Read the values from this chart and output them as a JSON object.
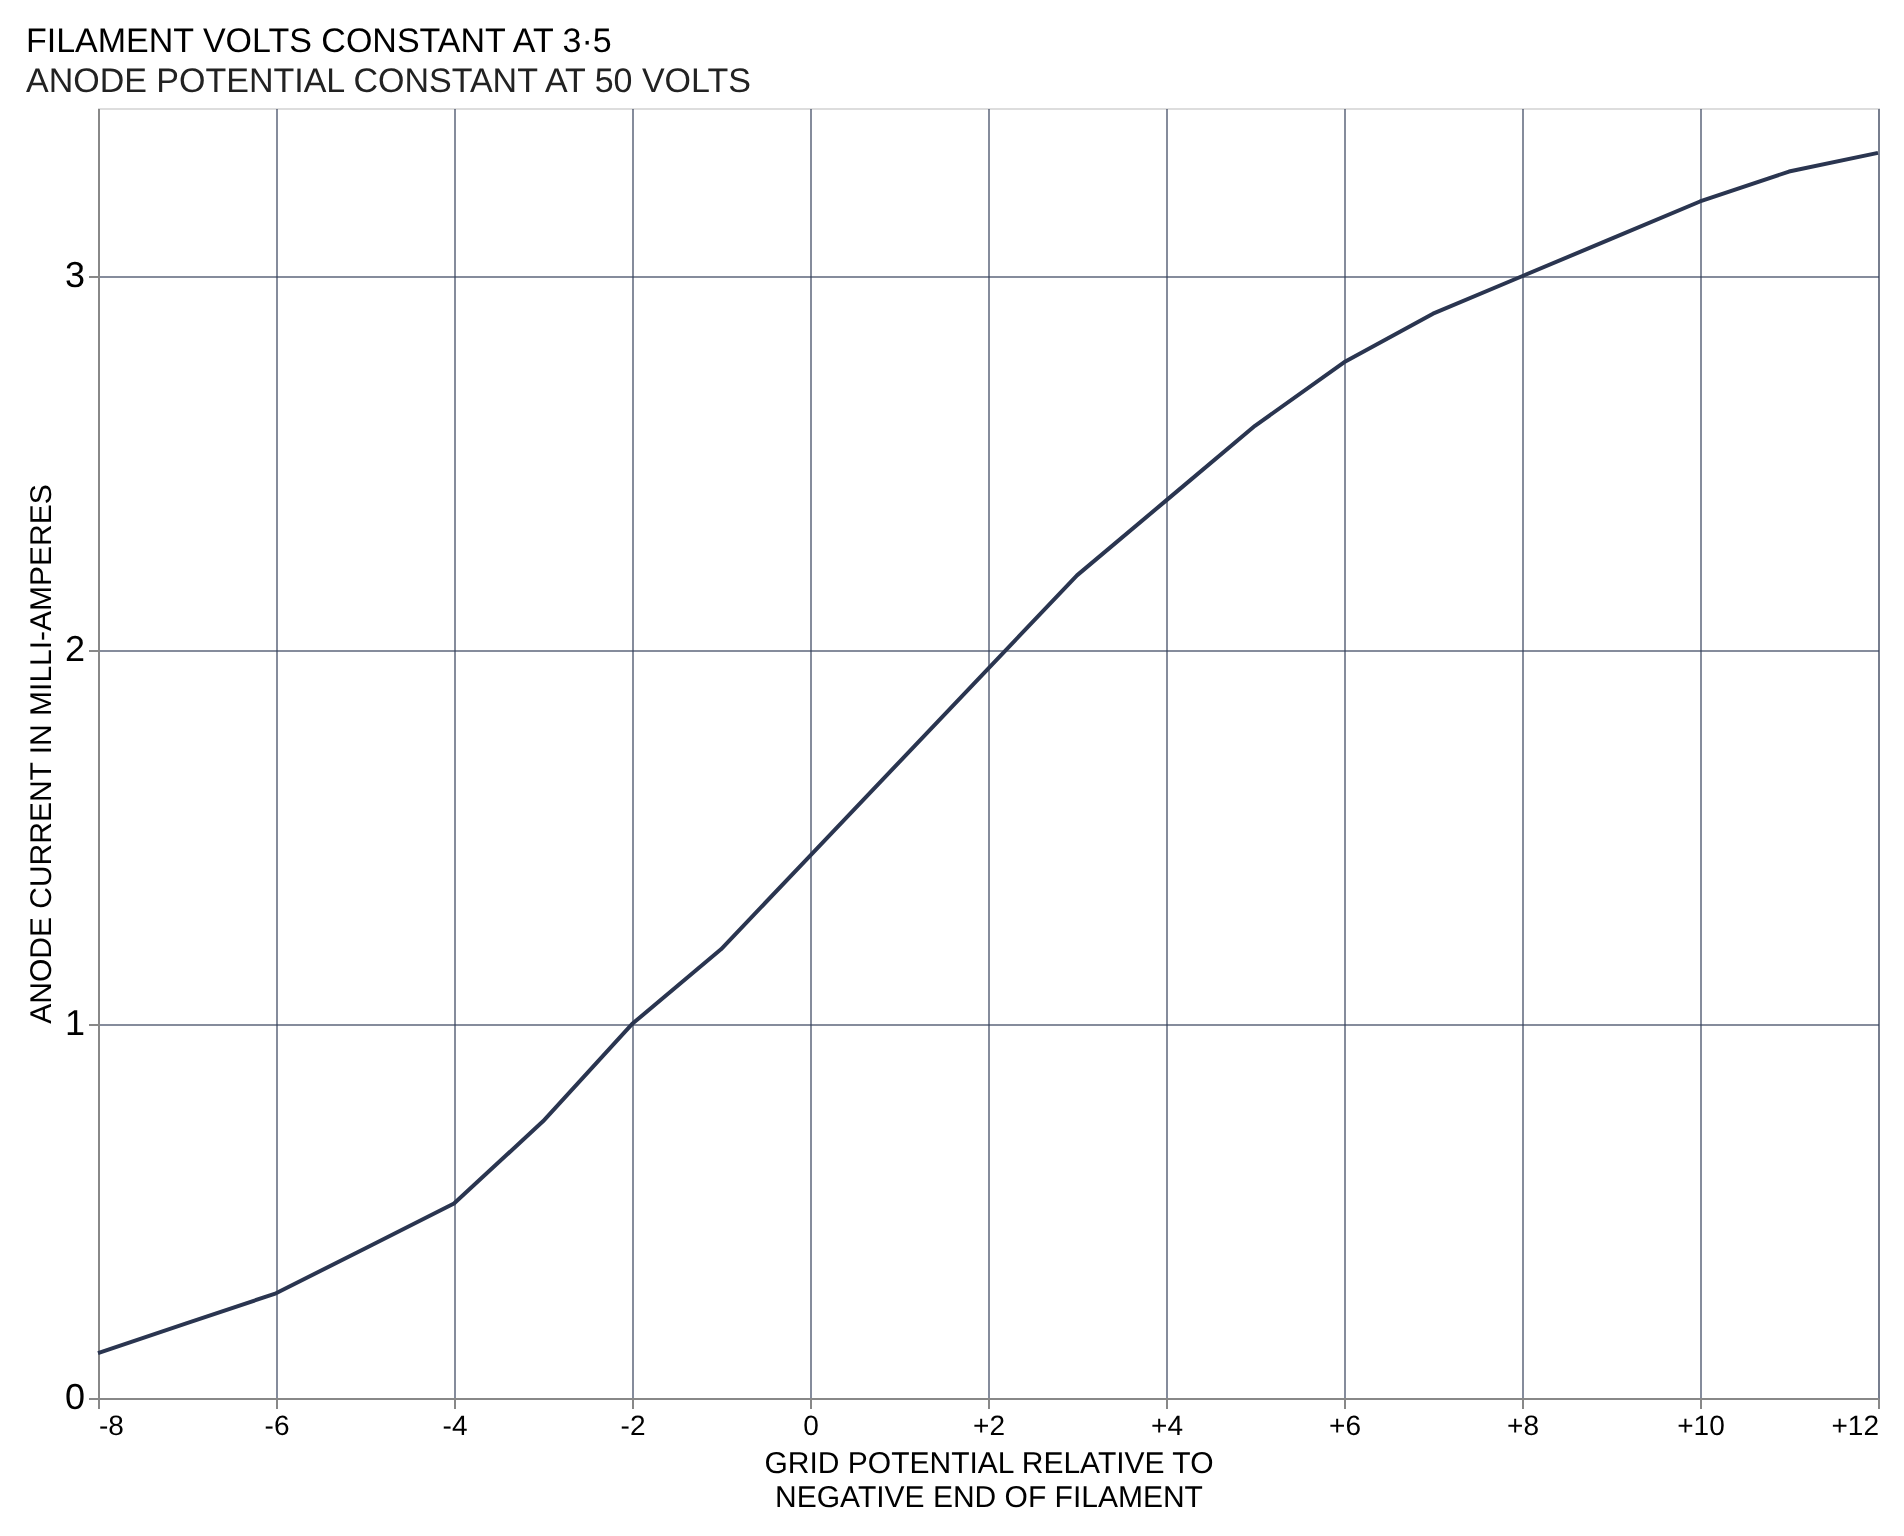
{
  "chart_data": {
    "type": "line",
    "title": "FILAMENT VOLTS CONSTANT AT 3·5",
    "subtitle": "ANODE POTENTIAL CONSTANT AT 50 VOLTS",
    "xlabel": "GRID POTENTIAL RELATIVE TO\nNEGATIVE END OF FILAMENT",
    "ylabel": "ANODE CURRENT IN MILLI-AMPERES",
    "x": [
      -8,
      -7,
      -6,
      -5,
      -4,
      -3,
      -2,
      -1,
      0,
      1,
      2,
      3,
      4,
      5,
      6,
      7,
      8,
      9,
      10,
      11,
      12
    ],
    "series": [
      {
        "color": "#2a3550",
        "values": [
          0.12,
          0.2,
          0.28,
          0.4,
          0.52,
          0.74,
          1.0,
          1.2,
          1.45,
          1.7,
          1.95,
          2.2,
          2.4,
          2.6,
          2.77,
          2.9,
          3.0,
          3.1,
          3.2,
          3.28,
          3.33
        ]
      }
    ],
    "xlim": [
      -8,
      12
    ],
    "ylim": [
      0,
      3.45
    ],
    "xticks": [
      -8,
      -6,
      -4,
      -2,
      0,
      {
        "value": 2,
        "label": "+2"
      },
      {
        "value": 4,
        "label": "+4"
      },
      {
        "value": 6,
        "label": "+6"
      },
      {
        "value": 8,
        "label": "+8"
      },
      {
        "value": 10,
        "label": "+10"
      },
      {
        "value": 12,
        "label": "+12"
      }
    ],
    "yticks": [
      0,
      1,
      2,
      3
    ],
    "grid": true,
    "marker": "none",
    "line_style": "solid"
  }
}
